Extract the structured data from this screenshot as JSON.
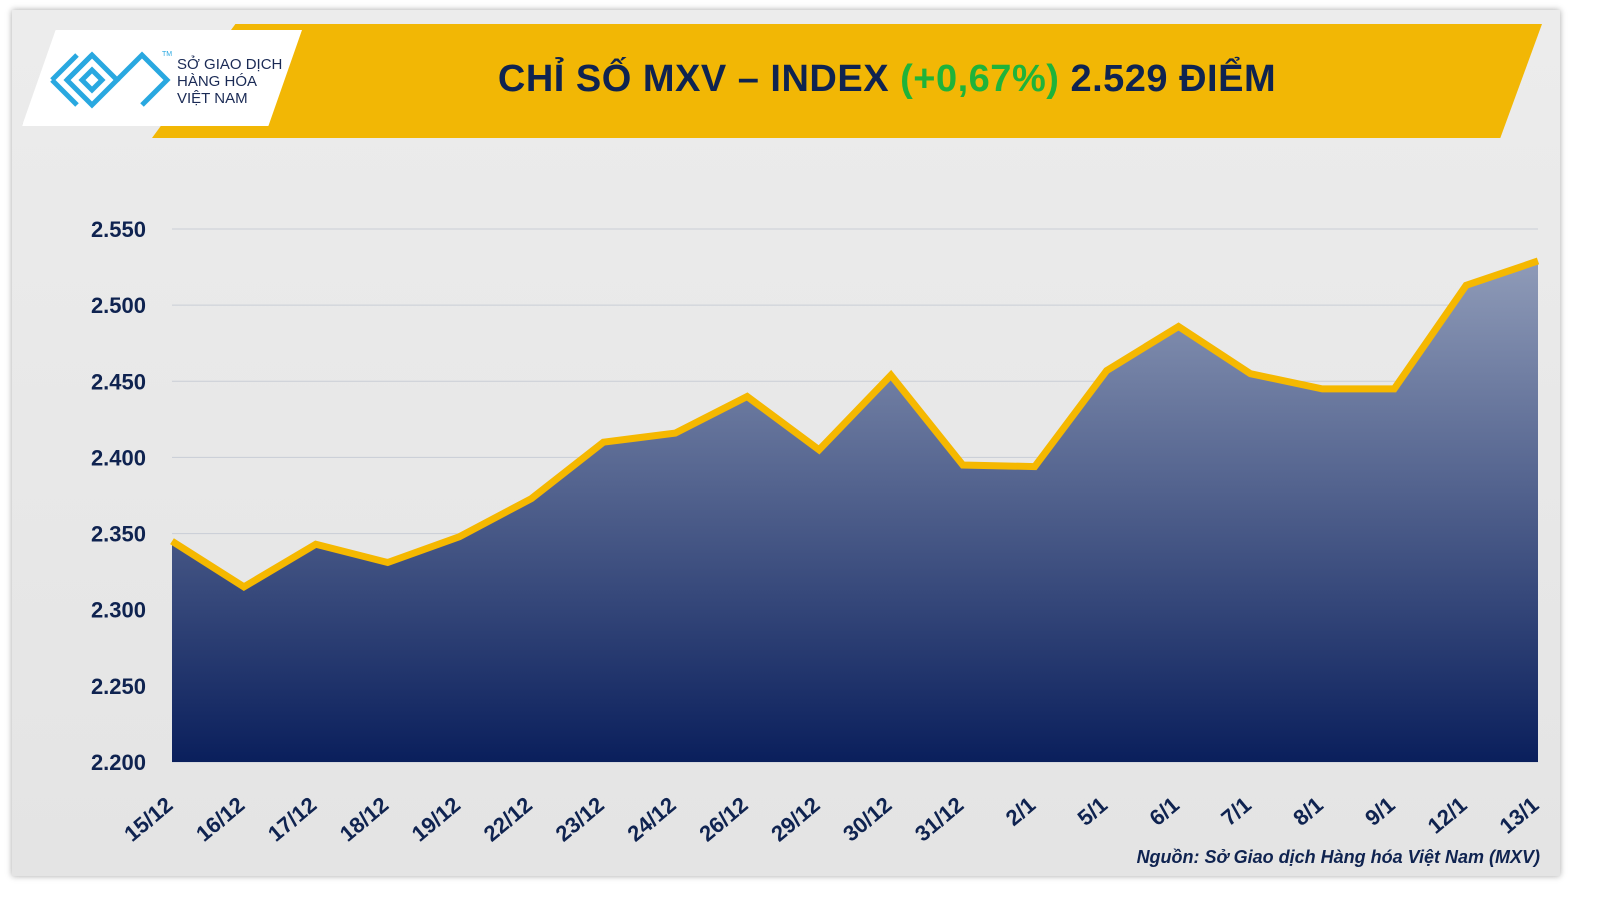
{
  "logo": {
    "lines": [
      "SỞ GIAO DỊCH",
      "HÀNG HÓA",
      "VIỆT NAM"
    ],
    "tm": "TM",
    "color": "#29a8e0"
  },
  "header": {
    "title_prefix": "CHỈ SỐ MXV – INDEX",
    "change": "(+0,67%)",
    "value": "2.529 ĐIỂM"
  },
  "source": "Nguồn: Sở Giao dịch Hàng hóa Việt Nam (MXV)",
  "colors": {
    "banner": "#f2b705",
    "line": "#f5b800",
    "area_top": "#8f9bb8",
    "area_bottom": "#0a1f5c",
    "change": "#1fb33a",
    "text": "#0f2350"
  },
  "chart_data": {
    "type": "area",
    "title": "CHỈ SỐ MXV – INDEX (+0,67%) 2.529 ĐIỂM",
    "categories": [
      "15/12",
      "16/12",
      "17/12",
      "18/12",
      "19/12",
      "22/12",
      "23/12",
      "24/12",
      "26/12",
      "29/12",
      "30/12",
      "31/12",
      "2/1",
      "5/1",
      "6/1",
      "7/1",
      "8/1",
      "9/1",
      "12/1",
      "13/1"
    ],
    "values": [
      2345,
      2315,
      2343,
      2331,
      2348,
      2373,
      2410,
      2416,
      2440,
      2405,
      2454,
      2395,
      2394,
      2457,
      2486,
      2455,
      2445,
      2445,
      2513,
      2529
    ],
    "ylim": [
      2200,
      2550
    ],
    "yticks": [
      2200,
      2250,
      2300,
      2350,
      2400,
      2450,
      2500,
      2550
    ],
    "ytick_labels": [
      "2.200",
      "2.250",
      "2.300",
      "2.350",
      "2.400",
      "2.450",
      "2.500",
      "2.550"
    ],
    "grid": true,
    "legend": "none"
  }
}
